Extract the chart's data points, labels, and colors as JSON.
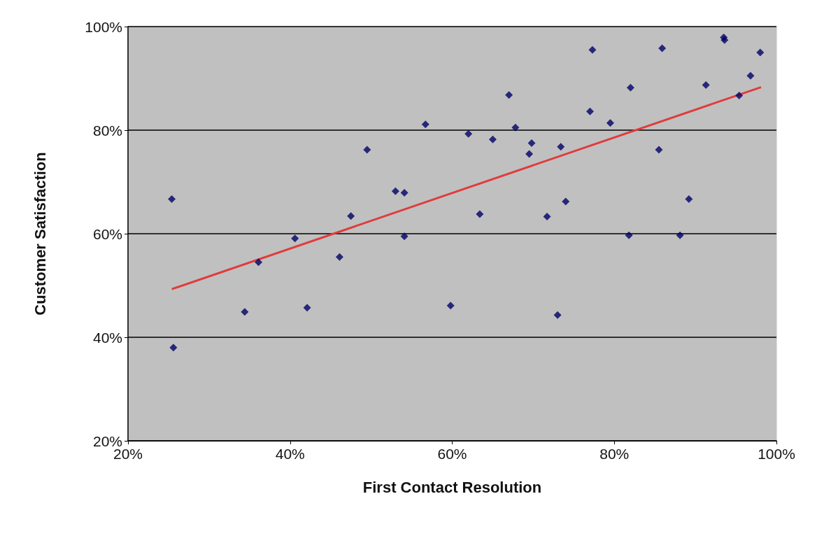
{
  "chart_data": {
    "type": "scatter",
    "xlabel": "First Contact Resolution",
    "ylabel": "Customer Satisfaction",
    "grid": "y",
    "xlim": [
      20,
      100
    ],
    "xticks": [
      {
        "value": 20,
        "label": "20%"
      },
      {
        "value": 40,
        "label": "40%"
      },
      {
        "value": 60,
        "label": "60%"
      },
      {
        "value": 80,
        "label": "80%"
      },
      {
        "value": 100,
        "label": "100%"
      }
    ],
    "ylim": [
      20,
      100
    ],
    "yticks": [
      {
        "value": 20,
        "label": "20%"
      },
      {
        "value": 40,
        "label": "40%"
      },
      {
        "value": 60,
        "label": "60%"
      },
      {
        "value": 80,
        "label": "80%"
      },
      {
        "value": 100,
        "label": "100%"
      }
    ],
    "series": [
      {
        "marker": "diamond",
        "color": "#000066",
        "x": [
          25.4,
          25.6,
          34.4,
          36.1,
          40.6,
          42.1,
          46.1,
          47.5,
          49.5,
          53.0,
          54.1,
          54.1,
          56.7,
          59.8,
          62.0,
          63.4,
          65.0,
          67.0,
          67.8,
          69.5,
          69.8,
          71.7,
          73.0,
          73.4,
          74.0,
          77.0,
          77.3,
          79.5,
          81.8,
          82.0,
          85.5,
          85.9,
          88.1,
          89.2,
          91.3,
          93.5,
          93.6,
          95.4,
          96.8,
          98.0
        ],
        "values": [
          66.7,
          38.0,
          44.9,
          54.5,
          59.1,
          45.7,
          55.5,
          63.4,
          76.2,
          68.2,
          67.9,
          59.5,
          81.1,
          46.1,
          79.3,
          63.8,
          78.2,
          86.8,
          80.5,
          75.4,
          77.5,
          63.3,
          44.3,
          76.8,
          66.2,
          83.6,
          95.5,
          81.4,
          59.7,
          88.2,
          76.2,
          95.8,
          59.7,
          66.7,
          88.7,
          97.9,
          97.4,
          86.7,
          90.5,
          95.0
        ]
      },
      {
        "type": "line",
        "marker": "none",
        "color": "#e03c3c",
        "x": [
          25.4,
          98.1
        ],
        "values": [
          49.3,
          88.3
        ]
      }
    ]
  }
}
